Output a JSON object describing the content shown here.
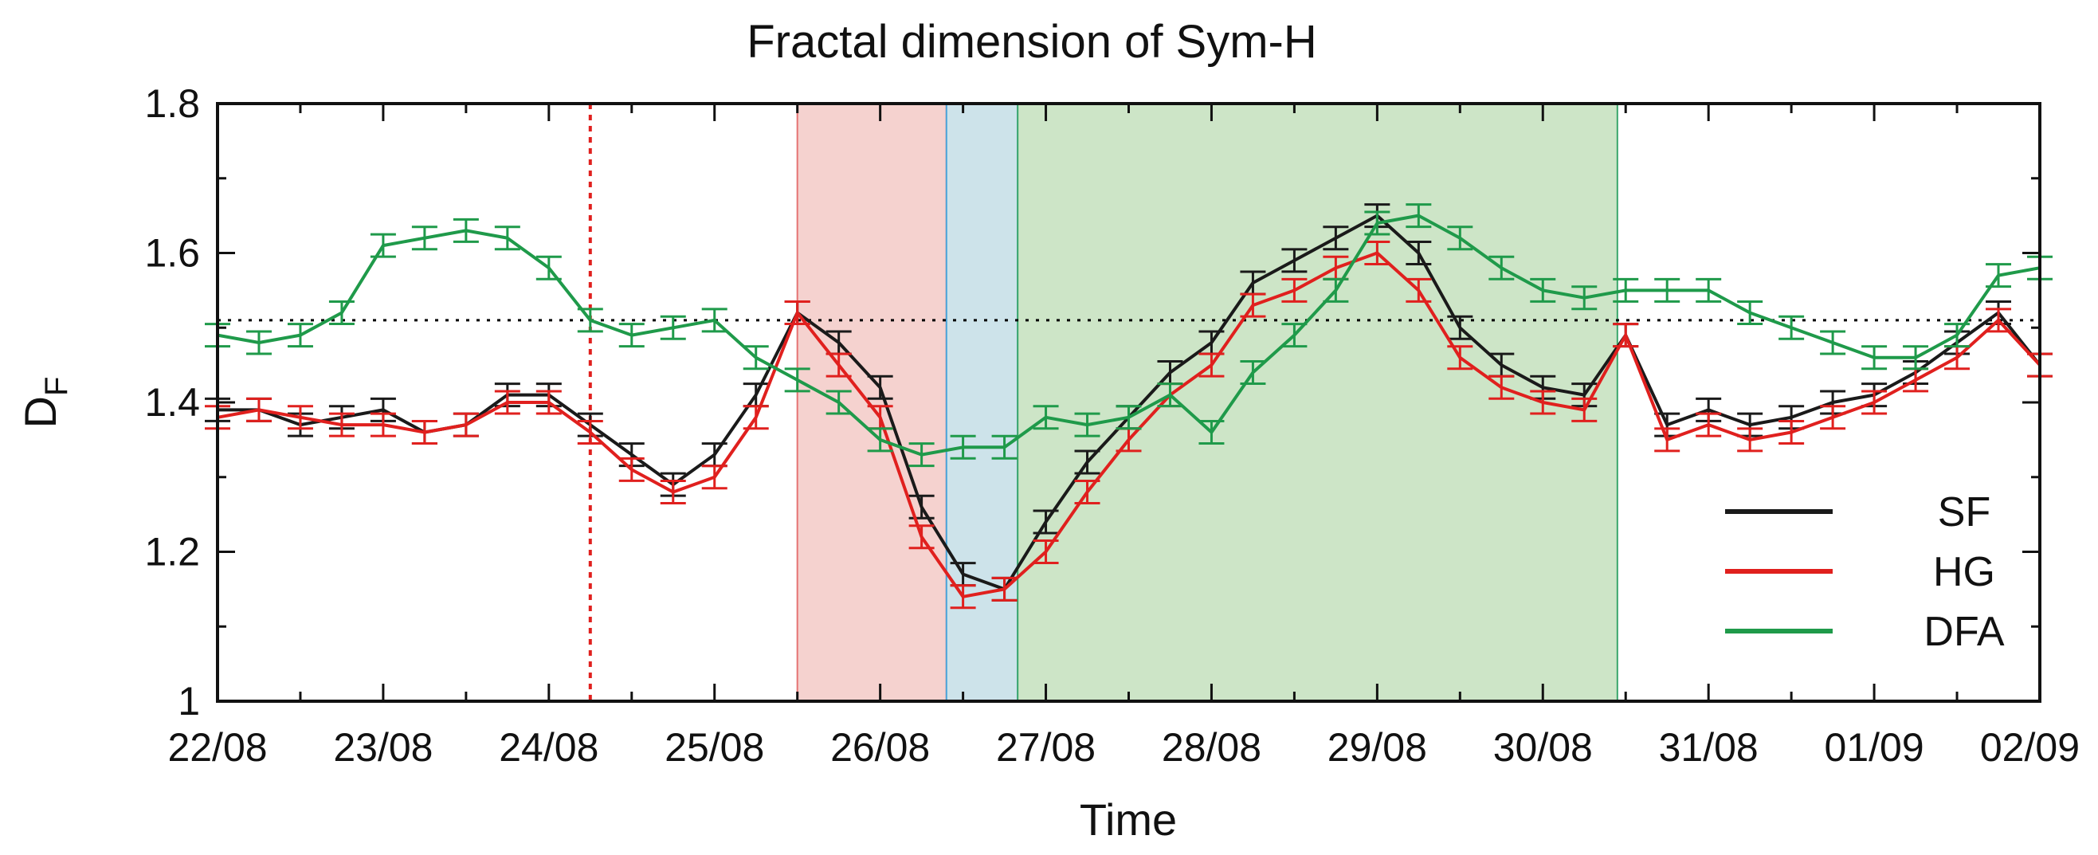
{
  "chart_data": {
    "type": "line",
    "title": "Fractal dimension of  Sym-H",
    "xlabel": "Time",
    "ylabel_main": "D",
    "ylabel_sub": "F",
    "ylim": [
      1.0,
      1.8
    ],
    "yticks": [
      1,
      1.2,
      1.4,
      1.6,
      1.8
    ],
    "ytick_labels": [
      "1",
      "1.2",
      "1.4",
      "1.6",
      "1.8"
    ],
    "xlim": [
      0,
      11
    ],
    "xticks": [
      0,
      1,
      2,
      3,
      4,
      5,
      6,
      7,
      8,
      9,
      10,
      11
    ],
    "xtick_labels": [
      "22/08",
      "23/08",
      "24/08",
      "25/08",
      "26/08",
      "27/08",
      "28/08",
      "29/08",
      "30/08",
      "31/08",
      "01/09",
      "02/09"
    ],
    "reference_line": {
      "y": 1.51,
      "style": "dotted",
      "color": "#000000"
    },
    "event_line": {
      "x": 2.25,
      "style": "dotted",
      "color": "#e0201e"
    },
    "shaded_regions": [
      {
        "x0": 3.5,
        "x1": 4.4,
        "color": "#f5d2cf",
        "edge": "#e57373"
      },
      {
        "x0": 4.4,
        "x1": 4.83,
        "color": "#cde3ea",
        "edge": "#4aa3d8"
      },
      {
        "x0": 4.83,
        "x1": 8.45,
        "color": "#cde5c7",
        "edge": "#3aa66a"
      }
    ],
    "legend": {
      "placement": "lower-right",
      "entries": [
        "SF",
        "HG",
        "DFA"
      ]
    },
    "series": [
      {
        "name": "SF",
        "color": "#1a1a1a",
        "x": [
          0.0,
          0.25,
          0.5,
          0.75,
          1.0,
          1.25,
          1.5,
          1.75,
          2.0,
          2.25,
          2.5,
          2.75,
          3.0,
          3.25,
          3.5,
          3.75,
          4.0,
          4.25,
          4.5,
          4.75,
          5.0,
          5.25,
          5.5,
          5.75,
          6.0,
          6.25,
          6.5,
          6.75,
          7.0,
          7.25,
          7.5,
          7.75,
          8.0,
          8.25,
          8.5,
          8.75,
          9.0,
          9.25,
          9.5,
          9.75,
          10.0,
          10.25,
          10.5,
          10.75,
          11.0
        ],
        "y": [
          1.39,
          1.39,
          1.37,
          1.38,
          1.39,
          1.36,
          1.37,
          1.41,
          1.41,
          1.37,
          1.33,
          1.29,
          1.33,
          1.41,
          1.52,
          1.48,
          1.42,
          1.26,
          1.17,
          1.15,
          1.24,
          1.32,
          1.38,
          1.44,
          1.48,
          1.56,
          1.59,
          1.62,
          1.65,
          1.6,
          1.5,
          1.45,
          1.42,
          1.41,
          1.49,
          1.37,
          1.39,
          1.37,
          1.38,
          1.4,
          1.41,
          1.44,
          1.48,
          1.52,
          1.45
        ]
      },
      {
        "name": "HG",
        "color": "#e0201e",
        "x": [
          0.0,
          0.25,
          0.5,
          0.75,
          1.0,
          1.25,
          1.5,
          1.75,
          2.0,
          2.25,
          2.5,
          2.75,
          3.0,
          3.25,
          3.5,
          3.75,
          4.0,
          4.25,
          4.5,
          4.75,
          5.0,
          5.25,
          5.5,
          5.75,
          6.0,
          6.25,
          6.5,
          6.75,
          7.0,
          7.25,
          7.5,
          7.75,
          8.0,
          8.25,
          8.5,
          8.75,
          9.0,
          9.25,
          9.5,
          9.75,
          10.0,
          10.25,
          10.5,
          10.75,
          11.0
        ],
        "y": [
          1.38,
          1.39,
          1.38,
          1.37,
          1.37,
          1.36,
          1.37,
          1.4,
          1.4,
          1.36,
          1.31,
          1.28,
          1.3,
          1.38,
          1.52,
          1.45,
          1.38,
          1.22,
          1.14,
          1.15,
          1.2,
          1.28,
          1.35,
          1.41,
          1.45,
          1.53,
          1.55,
          1.58,
          1.6,
          1.55,
          1.46,
          1.42,
          1.4,
          1.39,
          1.49,
          1.35,
          1.37,
          1.35,
          1.36,
          1.38,
          1.4,
          1.43,
          1.46,
          1.51,
          1.45
        ]
      },
      {
        "name": "DFA",
        "color": "#1f9a4a",
        "x": [
          0.0,
          0.25,
          0.5,
          0.75,
          1.0,
          1.25,
          1.5,
          1.75,
          2.0,
          2.25,
          2.5,
          2.75,
          3.0,
          3.25,
          3.5,
          3.75,
          4.0,
          4.25,
          4.5,
          4.75,
          5.0,
          5.25,
          5.5,
          5.75,
          6.0,
          6.25,
          6.5,
          6.75,
          7.0,
          7.25,
          7.5,
          7.75,
          8.0,
          8.25,
          8.5,
          8.75,
          9.0,
          9.25,
          9.5,
          9.75,
          10.0,
          10.25,
          10.5,
          10.75,
          11.0
        ],
        "y": [
          1.49,
          1.48,
          1.49,
          1.52,
          1.61,
          1.62,
          1.63,
          1.62,
          1.58,
          1.51,
          1.49,
          1.5,
          1.51,
          1.46,
          1.43,
          1.4,
          1.35,
          1.33,
          1.34,
          1.34,
          1.38,
          1.37,
          1.38,
          1.41,
          1.36,
          1.44,
          1.49,
          1.55,
          1.64,
          1.65,
          1.62,
          1.58,
          1.55,
          1.54,
          1.55,
          1.55,
          1.55,
          1.52,
          1.5,
          1.48,
          1.46,
          1.46,
          1.49,
          1.57,
          1.58
        ]
      }
    ]
  }
}
